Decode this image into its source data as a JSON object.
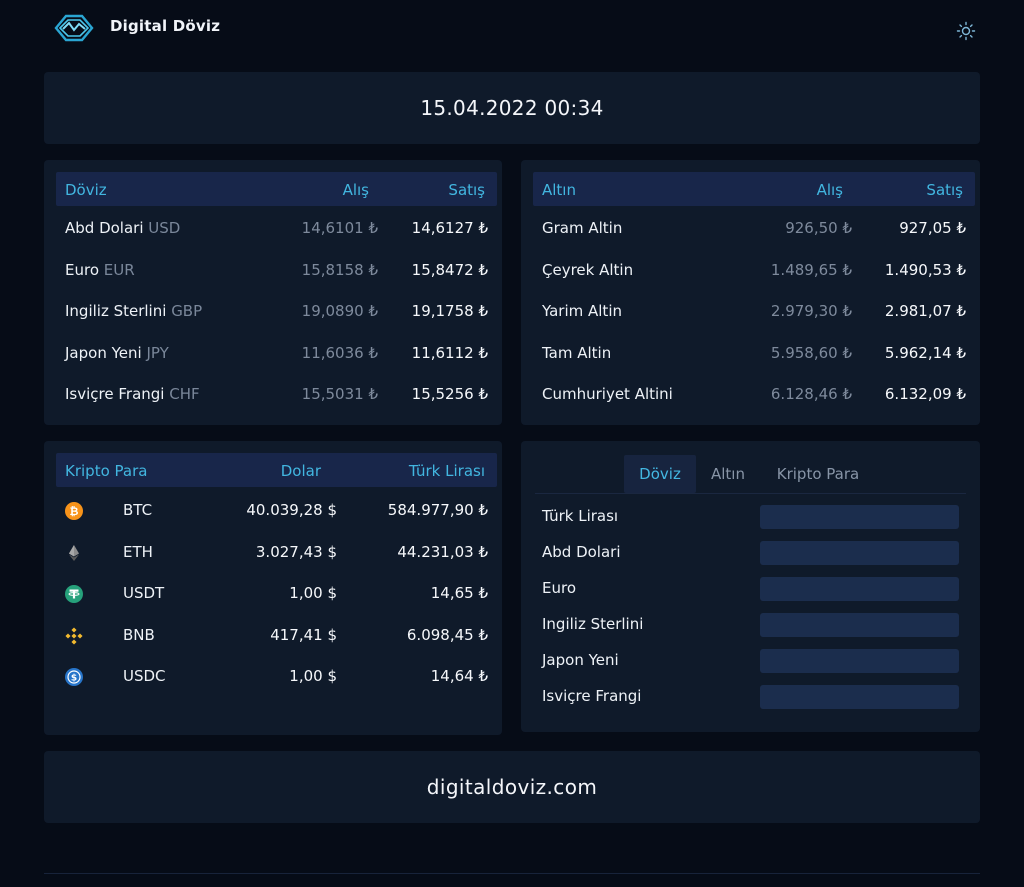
{
  "header": {
    "brand": "Digital Döviz",
    "logo_icon": "wave-logo-icon",
    "theme_icon": "sun-icon"
  },
  "date": "15.04.2022 00:34",
  "doviz": {
    "headers": {
      "name": "Döviz",
      "buy": "Alış",
      "sell": "Satış"
    },
    "rows": [
      {
        "name": "Abd Dolari",
        "code": "USD",
        "buy": "14,6101 ₺",
        "sell": "14,6127 ₺"
      },
      {
        "name": "Euro",
        "code": "EUR",
        "buy": "15,8158 ₺",
        "sell": "15,8472 ₺"
      },
      {
        "name": "Ingiliz Sterlini",
        "code": "GBP",
        "buy": "19,0890 ₺",
        "sell": "19,1758 ₺"
      },
      {
        "name": "Japon Yeni",
        "code": "JPY",
        "buy": "11,6036 ₺",
        "sell": "11,6112 ₺"
      },
      {
        "name": "Isviçre Frangi",
        "code": "CHF",
        "buy": "15,5031 ₺",
        "sell": "15,5256 ₺"
      }
    ]
  },
  "altin": {
    "headers": {
      "name": "Altın",
      "buy": "Alış",
      "sell": "Satış"
    },
    "rows": [
      {
        "name": "Gram Altin",
        "buy": "926,50 ₺",
        "sell": "927,05 ₺"
      },
      {
        "name": "Çeyrek Altin",
        "buy": "1.489,65 ₺",
        "sell": "1.490,53 ₺"
      },
      {
        "name": "Yarim Altin",
        "buy": "2.979,30 ₺",
        "sell": "2.981,07 ₺"
      },
      {
        "name": "Tam Altin",
        "buy": "5.958,60 ₺",
        "sell": "5.962,14 ₺"
      },
      {
        "name": "Cumhuriyet Altini",
        "buy": "6.128,46 ₺",
        "sell": "6.132,09 ₺"
      }
    ]
  },
  "kripto": {
    "headers": {
      "name": "Kripto Para",
      "usd": "Dolar",
      "try": "Türk Lirası"
    },
    "rows": [
      {
        "symbol": "BTC",
        "icon": "bitcoin-icon",
        "color": "#f7931a",
        "usd": "40.039,28 $",
        "try": "584.977,90 ₺"
      },
      {
        "symbol": "ETH",
        "icon": "ethereum-icon",
        "color": "#8c8c8c",
        "usd": "3.027,43 $",
        "try": "44.231,03 ₺"
      },
      {
        "symbol": "USDT",
        "icon": "tether-icon",
        "color": "#26a17b",
        "usd": "1,00 $",
        "try": "14,65 ₺"
      },
      {
        "symbol": "BNB",
        "icon": "binance-icon",
        "color": "#f3ba2f",
        "usd": "417,41 $",
        "try": "6.098,45 ₺"
      },
      {
        "symbol": "USDC",
        "icon": "usdc-icon",
        "color": "#2775ca",
        "usd": "1,00 $",
        "try": "14,64 ₺"
      }
    ]
  },
  "converter": {
    "tabs": [
      "Döviz",
      "Altın",
      "Kripto Para"
    ],
    "active_tab": "Döviz",
    "rows": [
      {
        "label": "Türk Lirası",
        "value": ""
      },
      {
        "label": "Abd Dolari",
        "value": ""
      },
      {
        "label": "Euro",
        "value": ""
      },
      {
        "label": "Ingiliz Sterlini",
        "value": ""
      },
      {
        "label": "Japon Yeni",
        "value": ""
      },
      {
        "label": "Isviçre Frangi",
        "value": ""
      }
    ]
  },
  "footer": {
    "site": "digitaldoviz.com"
  },
  "colors": {
    "background": "#060c17",
    "card": "#0f1a2a",
    "accent": "#42b6e0",
    "table_head": "#18264a",
    "input": "#1b2d4d"
  }
}
